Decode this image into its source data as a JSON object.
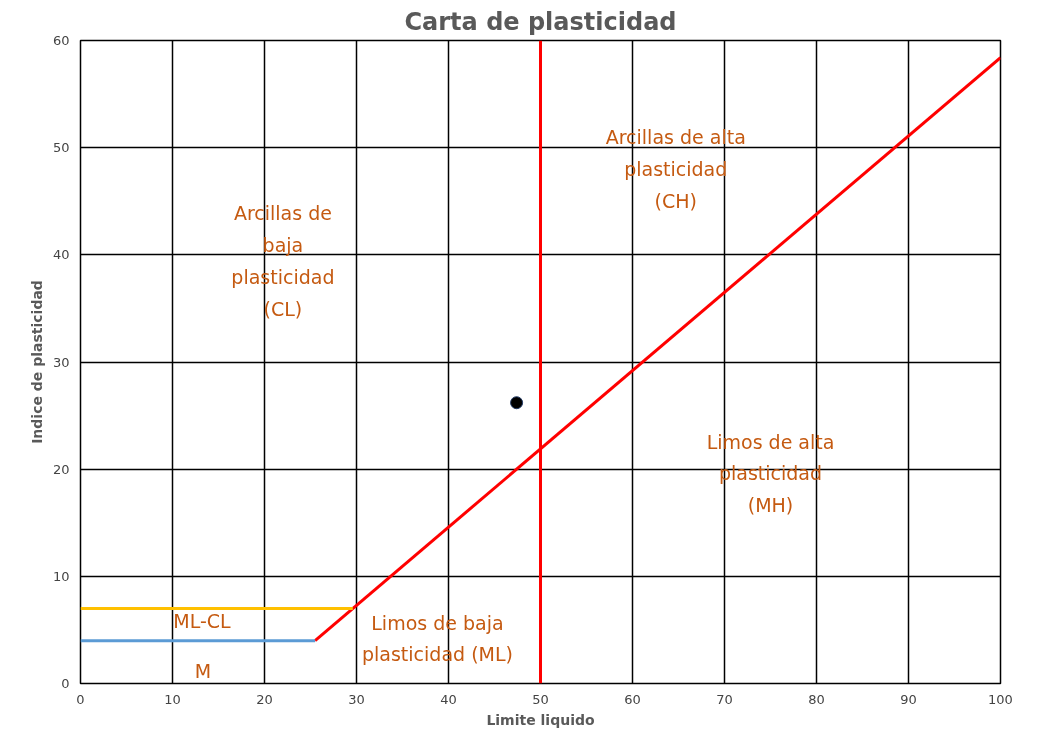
{
  "chart_data": {
    "type": "line",
    "title": "Carta de plasticidad",
    "xlabel": "Limite liquido",
    "ylabel": "Indice de plasticidad",
    "xlim": [
      0,
      100
    ],
    "ylim": [
      0,
      60
    ],
    "xticks": [
      0,
      10,
      20,
      30,
      40,
      50,
      60,
      70,
      80,
      90,
      100
    ],
    "yticks": [
      0,
      10,
      20,
      30,
      40,
      50,
      60
    ],
    "grid": true,
    "series": [
      {
        "color": "#ff0000",
        "x": [
          25.5,
          100
        ],
        "values": [
          4,
          58.4
        ]
      },
      {
        "color": "#ff0000",
        "x": [
          50,
          50
        ],
        "values": [
          0,
          60
        ]
      },
      {
        "color": "#ffc000",
        "x": [
          0,
          29.6
        ],
        "values": [
          7,
          7
        ]
      },
      {
        "color": "#5b9bd5",
        "x": [
          0,
          25.5
        ],
        "values": [
          4,
          4
        ]
      },
      {
        "type": "scatter",
        "marker": "circle",
        "color": "#000000",
        "x": [
          47.4
        ],
        "values": [
          26.2
        ]
      }
    ],
    "annotations": [
      "Arcillas de\nbaja\nplasticidad\n(CL)",
      "Arcillas de alta\nplasticidad\n(CH)",
      "Limos de alta\nplasticidad\n(MH)",
      "Limos de baja\nplasticidad (ML)",
      "ML-CL",
      "M"
    ]
  }
}
